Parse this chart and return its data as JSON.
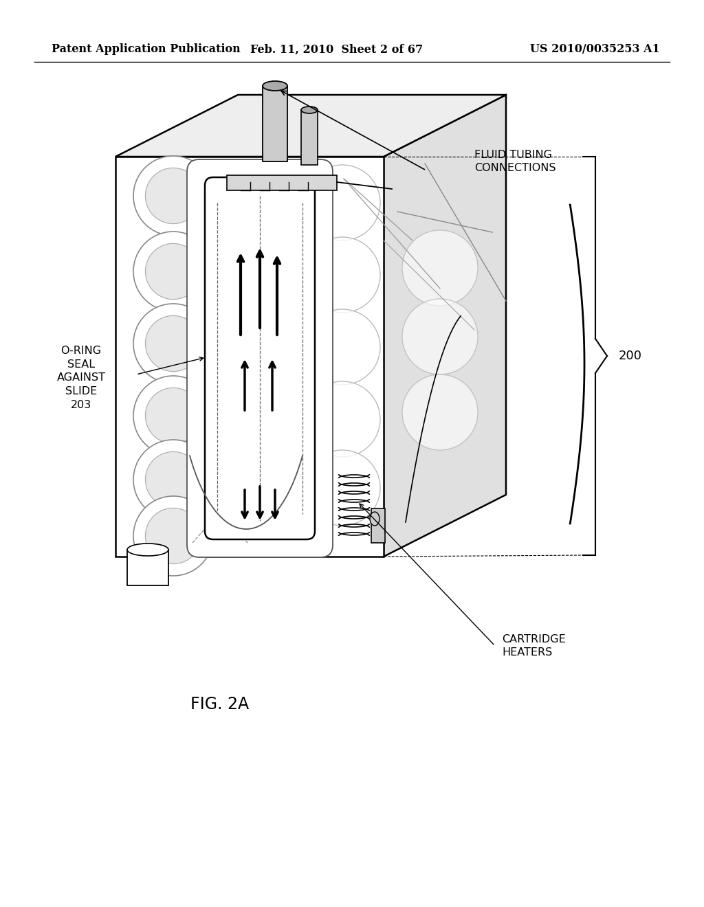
{
  "background_color": "#ffffff",
  "header_left": "Patent Application Publication",
  "header_center": "Feb. 11, 2010  Sheet 2 of 67",
  "header_right": "US 2010/0035253 A1",
  "header_fontsize": 11.5,
  "figure_label": "FIG. 2A",
  "figure_label_fontsize": 17,
  "label_200": "200",
  "label_oring": "O-RING\nSEAL\nAGAINST\nSLIDE\n203",
  "label_fluid": "FLUID TUBING\nCONNECTIONS",
  "label_cartridge": "CARTRIDGE\nHEATERS",
  "text_color": "#000000",
  "line_color": "#000000"
}
